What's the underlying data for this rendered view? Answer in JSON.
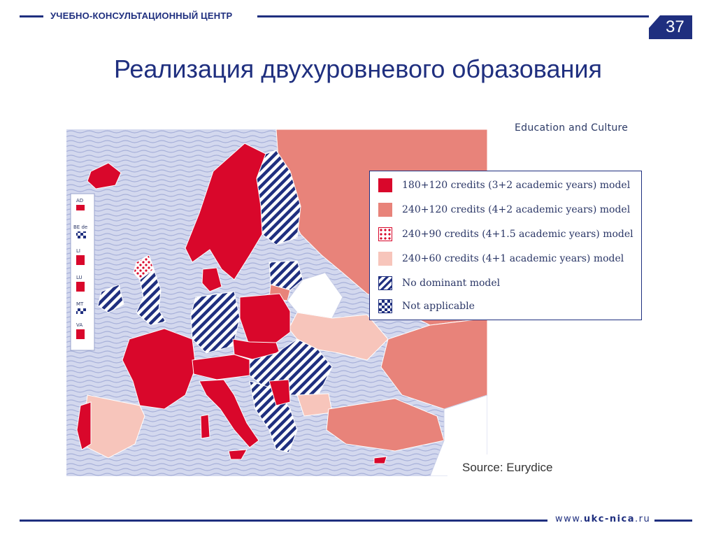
{
  "header": {
    "center_name": "УЧЕБНО-КОНСУЛЬТАЦИОННЫЙ ЦЕНТР",
    "page_number": "37"
  },
  "title": "Реализация двухуровневого образования",
  "map": {
    "publisher_label": "Education and Culture",
    "source_label": "Source: Eurydice",
    "inset_labels": [
      "AD",
      "BE de",
      "LI",
      "LU",
      "MT",
      "VA"
    ],
    "legend": [
      {
        "label": "180+120 credits (3+2 academic years) model",
        "pattern": "solid",
        "color": "#d9072b"
      },
      {
        "label": "240+120 credits (4+2 academic years) model",
        "pattern": "solid",
        "color": "#e8837a"
      },
      {
        "label": "240+90 credits (4+1.5 academic years) model",
        "pattern": "dots",
        "color": "#d9072b"
      },
      {
        "label": "240+60 credits (4+1 academic years) model",
        "pattern": "solid",
        "color": "#f7c5bb"
      },
      {
        "label": "No dominant model",
        "pattern": "stripes",
        "color": "#1f2f7f"
      },
      {
        "label": "Not applicable",
        "pattern": "checks",
        "color": "#1f2f7f"
      }
    ]
  },
  "footer": {
    "url_prefix": "www.",
    "url_domain": "ukc-nica",
    "url_suffix": ".ru"
  },
  "colors": {
    "brand_blue": "#1f2f7f",
    "dark_red": "#d9072b",
    "salmon": "#e8837a",
    "light_pink": "#f7c5bb",
    "sea": "#c9cfe8"
  }
}
